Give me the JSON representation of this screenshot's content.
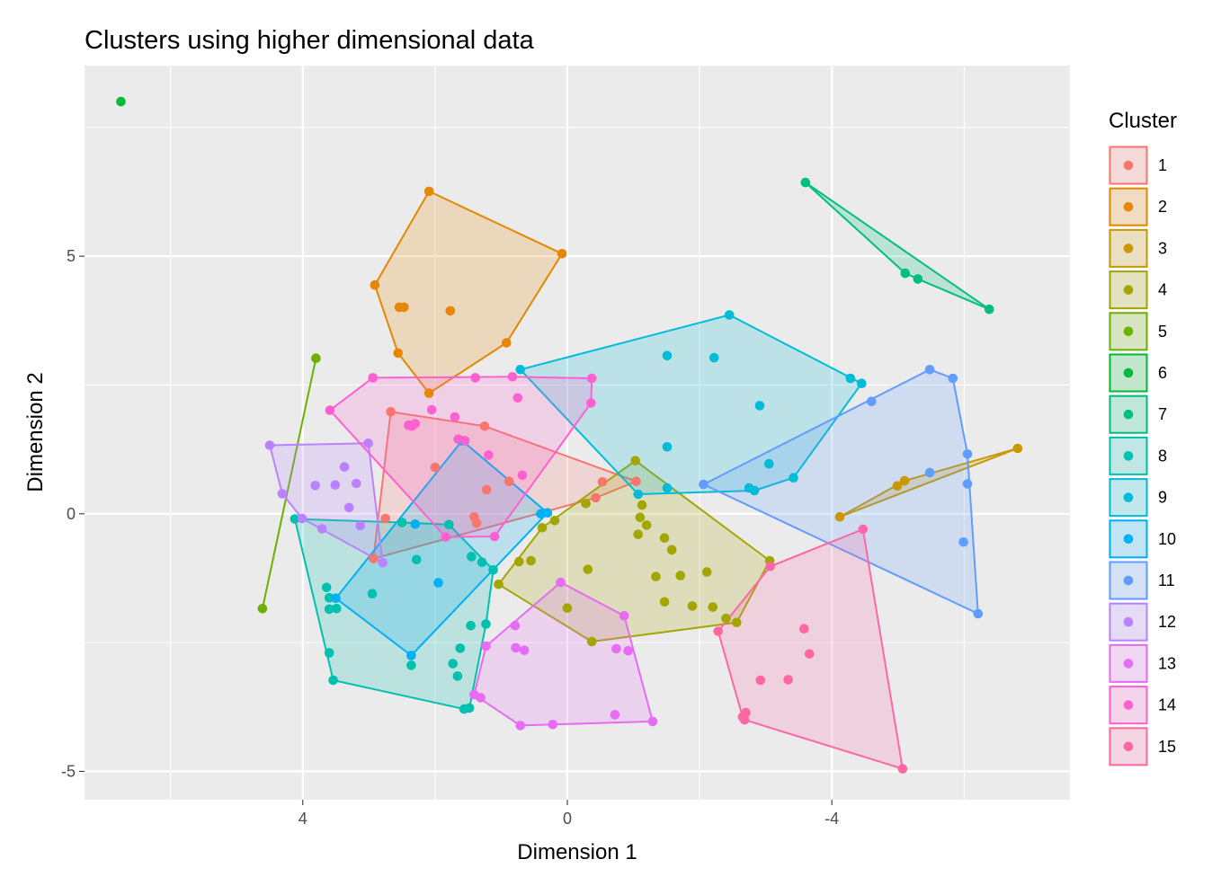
{
  "chart_data": {
    "type": "scatter",
    "title": "Clusters using higher dimensional data",
    "xlabel": "Dimension 1",
    "ylabel": "Dimension 2",
    "x_reversed": true,
    "xlim": [
      7.3,
      -7.6
    ],
    "ylim": [
      -5.55,
      8.7
    ],
    "x_major_ticks": [
      4,
      0,
      -4
    ],
    "x_tick_labels": [
      "4",
      "0",
      "-4"
    ],
    "x_minor_ticks": [
      6,
      2,
      -2,
      -6
    ],
    "y_major_ticks": [
      -5,
      0,
      5
    ],
    "y_tick_labels": [
      "-5",
      "0",
      "5"
    ],
    "y_minor_ticks": [
      -2.5,
      2.5,
      7.5
    ],
    "grid": true,
    "hulls": "convex hull polygon per cluster, semi-transparent fill",
    "legend": {
      "title": "Cluster",
      "position": "right"
    },
    "series": [
      {
        "name": "1",
        "color": "#F8766D",
        "points": [
          [
            2.67,
            1.98
          ],
          [
            1.25,
            1.7
          ],
          [
            0.88,
            0.63
          ],
          [
            -0.53,
            0.62
          ],
          [
            -1.04,
            0.63
          ],
          [
            -0.43,
            0.31
          ],
          [
            1.41,
            -0.06
          ],
          [
            1.22,
            0.47
          ],
          [
            2.75,
            -0.09
          ],
          [
            2.93,
            -0.87
          ],
          [
            2.0,
            0.9
          ],
          [
            1.37,
            -0.18
          ]
        ]
      },
      {
        "name": "2",
        "color": "#E58700",
        "points": [
          [
            2.09,
            6.26
          ],
          [
            0.08,
            5.05
          ],
          [
            2.91,
            4.44
          ],
          [
            2.54,
            4.01
          ],
          [
            2.47,
            4.01
          ],
          [
            1.77,
            3.94
          ],
          [
            0.92,
            3.32
          ],
          [
            2.56,
            3.12
          ],
          [
            2.09,
            2.34
          ]
        ]
      },
      {
        "name": "3",
        "color": "#C99800",
        "points": [
          [
            -6.81,
            1.27
          ],
          [
            -5.1,
            0.64
          ],
          [
            -4.12,
            -0.06
          ],
          [
            -4.99,
            0.54
          ]
        ]
      },
      {
        "name": "4",
        "color": "#A3A500",
        "points": [
          [
            -1.03,
            1.03
          ],
          [
            1.04,
            -1.37
          ],
          [
            -0.37,
            -2.48
          ],
          [
            -2.56,
            -2.11
          ],
          [
            -3.06,
            -0.91
          ],
          [
            -0.28,
            0.2
          ],
          [
            0.19,
            -0.13
          ],
          [
            -1.13,
            0.17
          ],
          [
            -1.1,
            -0.07
          ],
          [
            -1.2,
            -0.22
          ],
          [
            -1.47,
            -0.47
          ],
          [
            -1.58,
            -0.7
          ],
          [
            -1.07,
            -0.4
          ],
          [
            0.73,
            -0.93
          ],
          [
            0.55,
            -0.91
          ],
          [
            0.38,
            -0.27
          ],
          [
            -0.31,
            -1.08
          ],
          [
            -1.34,
            -1.22
          ],
          [
            -1.71,
            -1.2
          ],
          [
            -2.11,
            -1.13
          ],
          [
            -1.47,
            -1.71
          ],
          [
            -1.89,
            -1.79
          ],
          [
            -2.2,
            -1.81
          ],
          [
            -2.4,
            -2.03
          ],
          [
            0.0,
            -1.83
          ]
        ]
      },
      {
        "name": "5",
        "color": "#6BB100",
        "points": [
          [
            3.8,
            3.02
          ],
          [
            4.61,
            -1.84
          ]
        ]
      },
      {
        "name": "6",
        "color": "#00BA38",
        "points": [
          [
            6.75,
            8.0
          ]
        ]
      },
      {
        "name": "7",
        "color": "#00BF7D",
        "points": [
          [
            -3.6,
            6.43
          ],
          [
            -5.11,
            4.67
          ],
          [
            -5.3,
            4.56
          ],
          [
            -6.38,
            3.97
          ]
        ]
      },
      {
        "name": "8",
        "color": "#00C0AF",
        "points": [
          [
            4.12,
            -0.1
          ],
          [
            2.5,
            -0.17
          ],
          [
            1.79,
            -0.21
          ],
          [
            1.12,
            -1.09
          ],
          [
            1.29,
            -0.94
          ],
          [
            1.45,
            -0.83
          ],
          [
            2.28,
            -0.89
          ],
          [
            2.95,
            -1.55
          ],
          [
            3.6,
            -1.63
          ],
          [
            3.49,
            -1.84
          ],
          [
            3.6,
            -1.85
          ],
          [
            3.64,
            -1.43
          ],
          [
            1.46,
            -2.17
          ],
          [
            1.23,
            -2.14
          ],
          [
            1.62,
            -2.61
          ],
          [
            2.36,
            -2.94
          ],
          [
            1.73,
            -2.91
          ],
          [
            1.66,
            -3.15
          ],
          [
            1.56,
            -3.79
          ],
          [
            1.48,
            -3.77
          ],
          [
            3.6,
            -2.7
          ],
          [
            3.54,
            -3.23
          ]
        ]
      },
      {
        "name": "9",
        "color": "#00BCD8",
        "points": [
          [
            -2.45,
            3.86
          ],
          [
            -4.28,
            2.63
          ],
          [
            -4.45,
            2.53
          ],
          [
            -1.51,
            3.07
          ],
          [
            -2.22,
            3.03
          ],
          [
            -2.91,
            2.1
          ],
          [
            -3.05,
            0.97
          ],
          [
            -1.51,
            1.3
          ],
          [
            -3.42,
            0.7
          ],
          [
            -2.75,
            0.5
          ],
          [
            -2.83,
            0.45
          ],
          [
            -1.51,
            0.5
          ],
          [
            -1.07,
            0.38
          ],
          [
            0.71,
            2.8
          ]
        ]
      },
      {
        "name": "10",
        "color": "#00B0F6",
        "points": [
          [
            1.59,
            1.42
          ],
          [
            0.4,
            0.0
          ],
          [
            0.3,
            0.02
          ],
          [
            2.3,
            -0.2
          ],
          [
            3.5,
            -1.64
          ],
          [
            2.36,
            -2.75
          ],
          [
            1.95,
            -1.34
          ]
        ]
      },
      {
        "name": "11",
        "color": "#619CFF",
        "points": [
          [
            -5.48,
            2.8
          ],
          [
            -5.83,
            2.63
          ],
          [
            -4.6,
            2.18
          ],
          [
            -2.06,
            0.57
          ],
          [
            -5.48,
            0.8
          ],
          [
            -6.05,
            1.16
          ],
          [
            -6.05,
            0.58
          ],
          [
            -5.99,
            -0.55
          ],
          [
            -6.21,
            -1.94
          ]
        ]
      },
      {
        "name": "12",
        "color": "#B983FF",
        "points": [
          [
            4.5,
            1.33
          ],
          [
            3.01,
            1.37
          ],
          [
            3.37,
            0.91
          ],
          [
            4.31,
            0.39
          ],
          [
            4.01,
            -0.09
          ],
          [
            3.81,
            0.55
          ],
          [
            3.51,
            0.56
          ],
          [
            3.19,
            0.59
          ],
          [
            3.3,
            0.12
          ],
          [
            3.13,
            -0.23
          ],
          [
            3.71,
            -0.29
          ],
          [
            2.79,
            -0.95
          ]
        ]
      },
      {
        "name": "13",
        "color": "#E76BF3",
        "points": [
          [
            0.1,
            -1.33
          ],
          [
            -0.86,
            -1.98
          ],
          [
            -1.29,
            -4.03
          ],
          [
            0.71,
            -4.11
          ],
          [
            0.22,
            -4.09
          ],
          [
            1.31,
            -3.57
          ],
          [
            1.41,
            -3.51
          ],
          [
            1.23,
            -2.57
          ],
          [
            0.78,
            -2.6
          ],
          [
            0.65,
            -2.65
          ],
          [
            0.79,
            -2.17
          ],
          [
            -0.74,
            -2.62
          ],
          [
            -0.92,
            -2.66
          ],
          [
            -0.72,
            -3.9
          ]
        ]
      },
      {
        "name": "14",
        "color": "#FD61D1",
        "points": [
          [
            2.94,
            2.64
          ],
          [
            1.39,
            2.64
          ],
          [
            0.83,
            2.66
          ],
          [
            -0.37,
            2.63
          ],
          [
            -0.36,
            2.15
          ],
          [
            3.59,
            2.01
          ],
          [
            0.75,
            2.25
          ],
          [
            2.05,
            2.02
          ],
          [
            1.7,
            1.88
          ],
          [
            2.3,
            1.75
          ],
          [
            2.4,
            1.72
          ],
          [
            2.35,
            1.7
          ],
          [
            1.65,
            1.45
          ],
          [
            1.55,
            1.42
          ],
          [
            1.19,
            1.14
          ],
          [
            0.68,
            0.75
          ],
          [
            1.1,
            -0.44
          ],
          [
            1.84,
            -0.45
          ]
        ]
      },
      {
        "name": "15",
        "color": "#FF67A4",
        "points": [
          [
            -4.47,
            -0.3
          ],
          [
            -5.07,
            -4.95
          ],
          [
            -2.7,
            -3.86
          ],
          [
            -2.65,
            -3.94
          ],
          [
            -2.68,
            -4.0
          ],
          [
            -2.28,
            -2.28
          ],
          [
            -3.07,
            -1.02
          ],
          [
            -3.58,
            -2.23
          ],
          [
            -3.66,
            -2.72
          ],
          [
            -3.34,
            -3.22
          ],
          [
            -2.92,
            -3.23
          ]
        ]
      }
    ]
  }
}
